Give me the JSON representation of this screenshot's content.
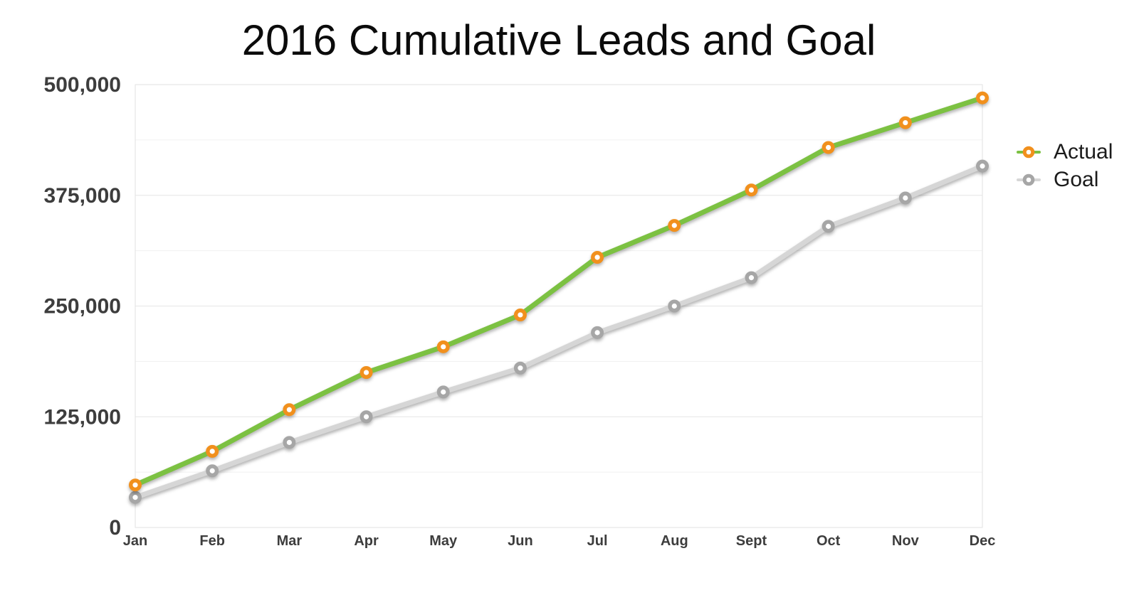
{
  "title": "2016 Cumulative Leads and Goal",
  "chart_data": {
    "type": "line",
    "title": "2016 Cumulative Leads and Goal",
    "categories": [
      "Jan",
      "Feb",
      "Mar",
      "Apr",
      "May",
      "Jun",
      "Jul",
      "Aug",
      "Sept",
      "Oct",
      "Nov",
      "Dec"
    ],
    "series": [
      {
        "name": "Actual",
        "line_color": "#7CC142",
        "marker_color": "#F1901D",
        "values": [
          48000,
          86000,
          133000,
          175000,
          204000,
          240000,
          305000,
          341000,
          381000,
          429000,
          457000,
          485000
        ]
      },
      {
        "name": "Goal",
        "line_color": "#D6D6D6",
        "marker_color": "#A6A6A6",
        "values": [
          34000,
          64000,
          96000,
          125000,
          153000,
          180000,
          220000,
          250000,
          282000,
          340000,
          372000,
          408000
        ]
      }
    ],
    "ylim": [
      0,
      500000
    ],
    "ytick_interval": 125000,
    "yminor_interval": 62500,
    "yticks": [
      {
        "value": 0,
        "label": "0"
      },
      {
        "value": 125000,
        "label": "125,000"
      },
      {
        "value": 250000,
        "label": "250,000"
      },
      {
        "value": 375000,
        "label": "375,000"
      },
      {
        "value": 500000,
        "label": "500,000"
      }
    ],
    "grid": true,
    "legend_position": "right",
    "style": {
      "major_grid_color": "#E5E5E5",
      "minor_grid_color": "#F0F0F0",
      "border_color": "#E2E2E2",
      "tick_label_color": "#3d3d3d",
      "title_color": "#0b0b0b",
      "background": "#FFFFFF"
    }
  },
  "legend": {
    "items": [
      {
        "label": "Actual"
      },
      {
        "label": "Goal"
      }
    ]
  }
}
